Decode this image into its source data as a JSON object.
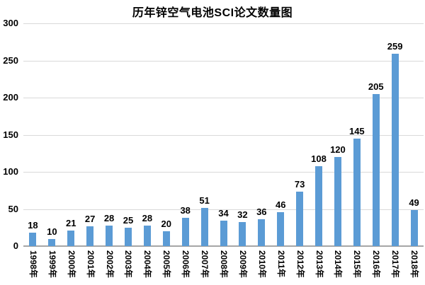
{
  "chart_data": {
    "type": "bar",
    "title": "历年锌空气电池SCI论文数量图",
    "categories": [
      "1998年",
      "1999年",
      "2000年",
      "2001年",
      "2002年",
      "2003年",
      "2004年",
      "2005年",
      "2006年",
      "2007年",
      "2008年",
      "2009年",
      "2010年",
      "2011年",
      "2012年",
      "2013年",
      "2014年",
      "2015年",
      "2016年",
      "2017年",
      "2018年"
    ],
    "values": [
      18,
      10,
      21,
      27,
      28,
      25,
      28,
      20,
      38,
      51,
      34,
      32,
      36,
      46,
      73,
      108,
      120,
      145,
      205,
      259,
      49
    ],
    "xlabel": "",
    "ylabel": "",
    "ylim": [
      0,
      300
    ],
    "yticks": [
      0,
      50,
      100,
      150,
      200,
      250,
      300
    ],
    "grid": true,
    "legend": false,
    "value_labels_shown": true,
    "x_label_rotation_deg": 90,
    "colors": {
      "bar": "#5B9BD5",
      "gridline": "#D9D9D9",
      "axis_line": "#A6A6A6",
      "text": "#000000",
      "background": "#FFFFFF"
    }
  }
}
